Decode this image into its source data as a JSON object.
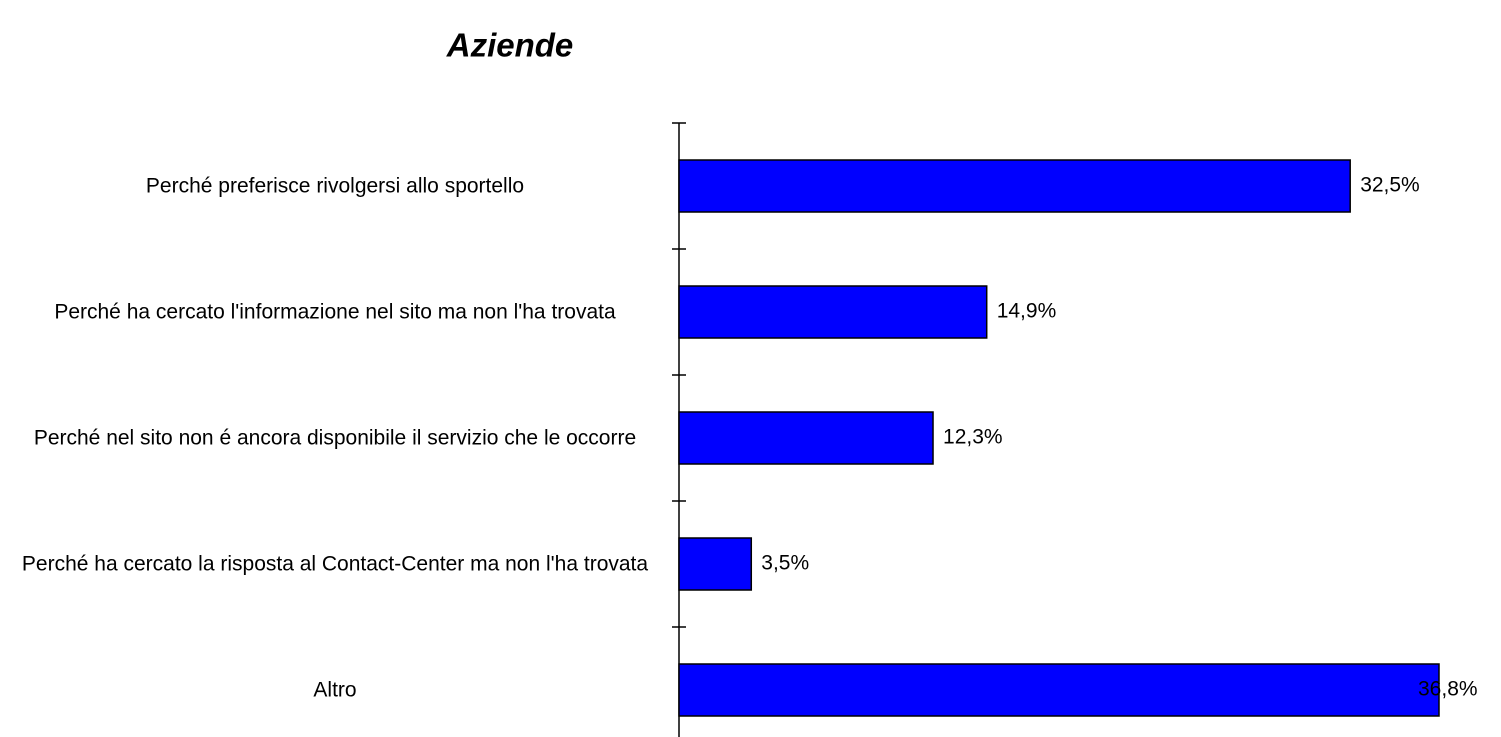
{
  "chart_data": {
    "type": "bar",
    "orientation": "horizontal",
    "title": "Aziende",
    "categories": [
      "Perché preferisce rivolgersi allo sportello",
      "Perché ha cercato l'informazione nel sito ma non l'ha trovata",
      "Perché nel sito non é ancora disponibile il servizio che le occorre",
      "Perché ha cercato la risposta al Contact-Center ma non l'ha trovata",
      "Altro"
    ],
    "values": [
      32.5,
      14.9,
      12.3,
      3.5,
      36.8
    ],
    "value_labels": [
      "32,5%",
      "14,9%",
      "12,3%",
      "3,5%",
      "36,8%"
    ],
    "color": "#0000ff"
  }
}
